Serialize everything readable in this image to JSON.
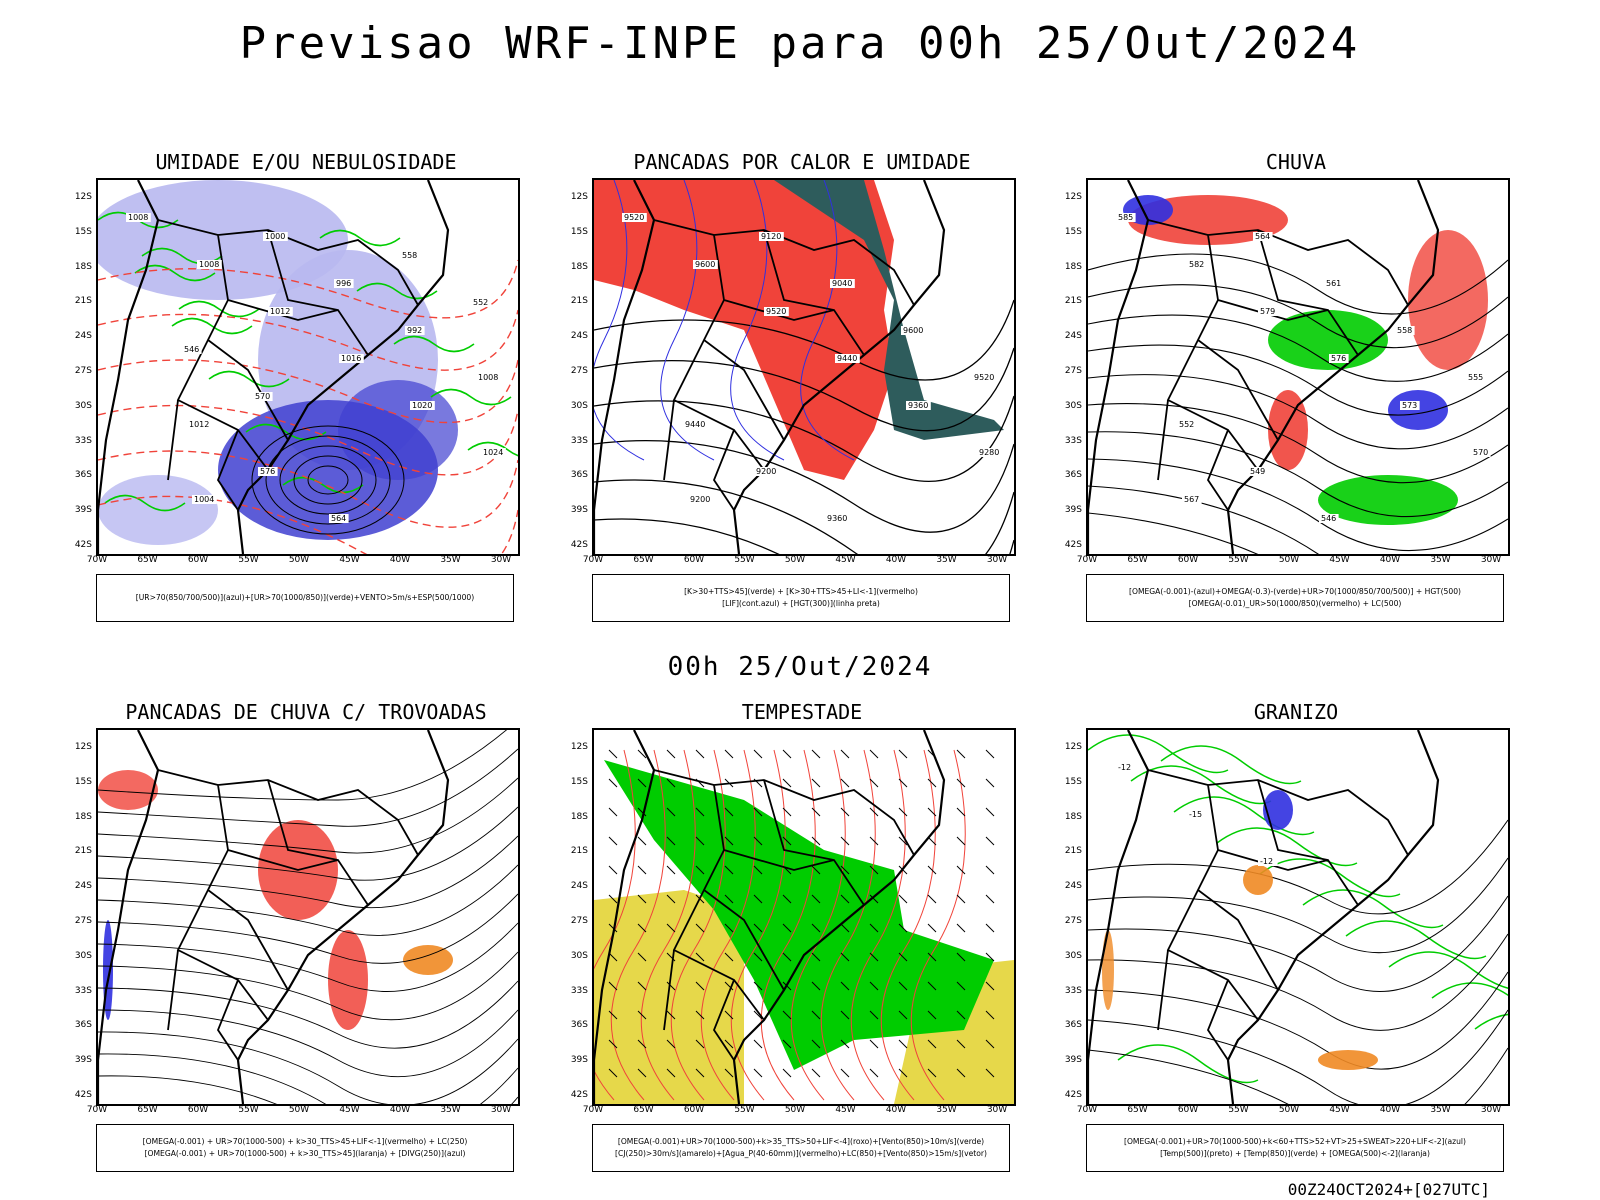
{
  "header": {
    "title": "Previsao WRF-INPE  para 00h 25/Out/2024"
  },
  "mid_date": "00h 25/Out/2024",
  "footer": "00Z24OCT2024+[027UTC]",
  "axes": {
    "lat_labels": [
      "12S",
      "15S",
      "18S",
      "21S",
      "24S",
      "27S",
      "30S",
      "33S",
      "36S",
      "39S",
      "42S"
    ],
    "lon_labels": [
      "70W",
      "65W",
      "60W",
      "55W",
      "50W",
      "45W",
      "40W",
      "35W",
      "30W"
    ]
  },
  "colors": {
    "red": "#f0433a",
    "green": "#00cc00",
    "blue": "#3030e0",
    "lavender": "#b8b8f0",
    "darkblue": "#4040d0",
    "teal": "#2e5c5c",
    "yellow": "#e6d84a",
    "orange": "#f08a24",
    "purple": "#a030c0"
  },
  "panels": [
    {
      "title": "UMIDADE E/OU NEBULOSIDADE",
      "legend": [
        "[UR>70(850/700/500)](azul)+[UR>70(1000/850)](verde)+VENTO>5m/s+ESP(500/1000)"
      ],
      "labels": [
        "1008",
        "1008",
        "1012",
        "1016",
        "1020",
        "1024",
        "1004",
        "1000",
        "996",
        "992",
        "1008",
        "1012",
        "576",
        "564",
        "558",
        "552",
        "546",
        "570"
      ]
    },
    {
      "title": "PANCADAS POR CALOR E UMIDADE",
      "legend": [
        "[K>30+TTS>45](verde) + [K>30+TTS>45+LI<-1](vermelho)",
        "[LIF](cont.azul) + [HGT(300)](linha preta)"
      ],
      "labels": [
        "9520",
        "9600",
        "9520",
        "9440",
        "9360",
        "9280",
        "9200",
        "9120",
        "9040",
        "9600",
        "9520",
        "9440",
        "9200",
        "9360"
      ]
    },
    {
      "title": "CHUVA",
      "legend": [
        "[OMEGA(-0.001)-(azul)+OMEGA(-0.3)-(verde)+UR>70(1000/850/700/500)] + HGT(500)",
        "[OMEGA(-0.01)_UR>50(1000/850)(vermelho) + LC(500)"
      ],
      "labels": [
        "585",
        "582",
        "579",
        "576",
        "573",
        "570",
        "567",
        "564",
        "561",
        "558",
        "555",
        "552",
        "549",
        "546"
      ]
    },
    {
      "title": "PANCADAS DE CHUVA C/ TROVOADAS",
      "legend": [
        "[OMEGA(-0.001) + UR>70(1000-500) + k>30_TTS>45+LIF<-1](vermelho) + LC(250)",
        "[OMEGA(-0.001) + UR>70(1000-500) + k>30_TTS>45](laranja) + [DIVG(250)](azul)"
      ],
      "labels": []
    },
    {
      "title": "TEMPESTADE",
      "legend": [
        "[OMEGA(-0.001)+UR>70(1000-500)+k>35_TTS>50+LIF<-4](roxo)+[Vento(850)>10m/s](verde)",
        "[CJ(250)>30m/s](amarelo)+[Agua_P(40-60mm)](vermelho)+LC(850)+[Vento(850)>15m/s](vetor)"
      ],
      "labels": []
    },
    {
      "title": "GRANIZO",
      "legend": [
        "[OMEGA(-0.001)+UR>70(1000-500)+k<60+TTS>52+VT>25+SWEAT>220+LIF<-2](azul)",
        "[Temp(500)](preto) + [Temp(850)](verde) + [OMEGA(500)<-2](laranja)"
      ],
      "labels": [
        "-12",
        "-15",
        "-12"
      ]
    }
  ]
}
